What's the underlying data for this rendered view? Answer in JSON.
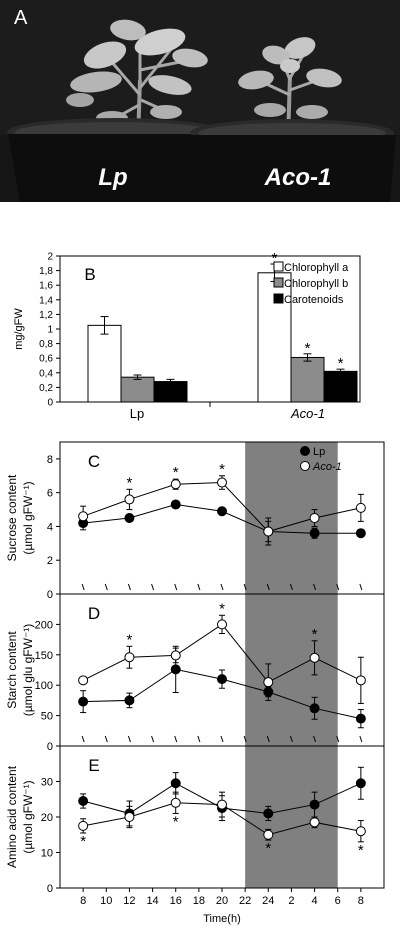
{
  "panel_a": {
    "panel_letter": "A",
    "plant_labels": [
      "Lp",
      "Aco-1"
    ]
  },
  "colors": {
    "photo_background": "#161616",
    "chlorophyll_a": "#ffffff",
    "chlorophyll_b": "#8c8c8c",
    "carotenoids": "#000000",
    "lp_marker": "#000000",
    "aco1_marker": "#ffffff",
    "dark_period": "#808080"
  },
  "chart_data": [
    {
      "panel": "B",
      "type": "bar",
      "ylabel": "mg/gFW",
      "ylim": [
        0,
        2
      ],
      "yticks": [
        "0",
        "0,2",
        "0,4",
        "0,6",
        "0,8",
        "1",
        "1,2",
        "1,4",
        "1,6",
        "1,8",
        "2"
      ],
      "categories": [
        "Lp",
        "Aco-1"
      ],
      "series": [
        {
          "name": "Chlorophyll a",
          "values": [
            1.05,
            1.77
          ],
          "errors": [
            0.12,
            0.12
          ],
          "significant": [
            false,
            true
          ]
        },
        {
          "name": "Chlorophyll b",
          "values": [
            0.34,
            0.61
          ],
          "errors": [
            0.03,
            0.05
          ],
          "significant": [
            false,
            true
          ]
        },
        {
          "name": "Carotenoids",
          "values": [
            0.28,
            0.42
          ],
          "errors": [
            0.03,
            0.03
          ],
          "significant": [
            false,
            true
          ]
        }
      ],
      "legend": "top-right",
      "grid": false
    },
    {
      "panel": "C",
      "type": "line",
      "ylabel_line1": "Sucrose content",
      "ylabel_line2": "(µmol gFW⁻¹)",
      "ylim": [
        0,
        9
      ],
      "yticks": [
        "0",
        "2",
        "4",
        "6",
        "8"
      ],
      "dark_period": [
        22,
        30
      ],
      "series": [
        {
          "name": "Lp",
          "x": [
            8,
            12,
            16,
            20,
            24,
            28,
            32
          ],
          "values": [
            4.2,
            4.5,
            5.3,
            4.9,
            3.7,
            3.6,
            3.6
          ],
          "errors": [
            0.4,
            0.2,
            0.2,
            0.2,
            0.8,
            0.3,
            0.2
          ]
        },
        {
          "name": "Aco-1",
          "x": [
            8,
            12,
            16,
            20,
            24,
            28,
            32
          ],
          "values": [
            4.6,
            5.6,
            6.5,
            6.6,
            3.7,
            4.5,
            5.1
          ],
          "errors": [
            0.6,
            0.6,
            0.3,
            0.4,
            0.6,
            0.5,
            0.8
          ],
          "significant": [
            false,
            true,
            true,
            true,
            false,
            false,
            false
          ]
        }
      ],
      "legend": "top-right"
    },
    {
      "panel": "D",
      "type": "line",
      "ylabel_line1": "Starch content",
      "ylabel_line2": "(µmol glu gFW⁻¹)",
      "ylim": [
        0,
        250
      ],
      "yticks": [
        "0",
        "50",
        "100",
        "150",
        "200"
      ],
      "dark_period": [
        22,
        30
      ],
      "series": [
        {
          "name": "Lp",
          "x": [
            8,
            12,
            16,
            20,
            24,
            28,
            32
          ],
          "values": [
            73,
            75,
            126,
            110,
            89,
            62,
            45
          ],
          "errors": [
            18,
            12,
            38,
            15,
            8,
            18,
            15
          ]
        },
        {
          "name": "Aco-1",
          "x": [
            8,
            12,
            16,
            20,
            24,
            28,
            32
          ],
          "values": [
            108,
            146,
            149,
            200,
            105,
            145,
            108
          ],
          "errors": [
            5,
            18,
            12,
            15,
            30,
            28,
            38
          ],
          "significant": [
            false,
            true,
            false,
            true,
            false,
            true,
            false
          ]
        }
      ]
    },
    {
      "panel": "E",
      "type": "line",
      "ylabel_line1": "Amino acid content",
      "ylabel_line2": "(µmol gFW⁻¹)",
      "xlabel": "Time(h)",
      "ylim": [
        0,
        40
      ],
      "yticks": [
        "0",
        "10",
        "20",
        "30"
      ],
      "xticks": [
        "8",
        "10",
        "12",
        "14",
        "16",
        "18",
        "20",
        "22",
        "24",
        "2",
        "4",
        "6",
        "8"
      ],
      "dark_period": [
        22,
        30
      ],
      "series": [
        {
          "name": "Lp",
          "x": [
            8,
            12,
            16,
            20,
            24,
            28,
            32
          ],
          "values": [
            24.5,
            21,
            29.5,
            22.5,
            21,
            23.5,
            29.5
          ],
          "errors": [
            2,
            3.5,
            3,
            3.5,
            2,
            3.5,
            4.5
          ]
        },
        {
          "name": "Aco-1",
          "x": [
            8,
            12,
            16,
            20,
            24,
            28,
            32
          ],
          "values": [
            17.5,
            20,
            24,
            23.5,
            15,
            18.5,
            16
          ],
          "errors": [
            2,
            3,
            3,
            3.5,
            1.5,
            1.5,
            3
          ],
          "significant": [
            true,
            false,
            true,
            false,
            true,
            false,
            true
          ]
        }
      ]
    }
  ]
}
